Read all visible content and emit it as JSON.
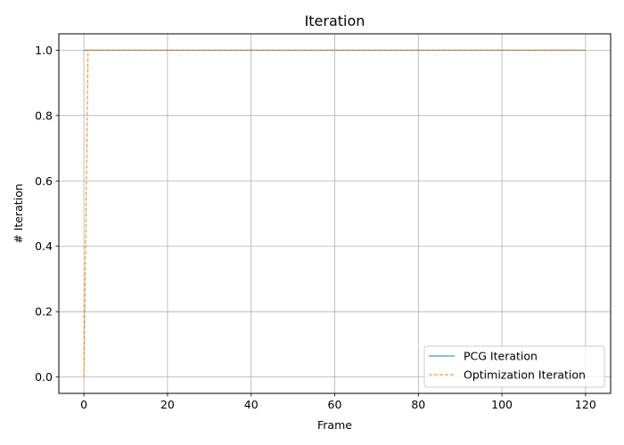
{
  "chart_data": {
    "type": "line",
    "title": "Iteration",
    "xlabel": "Frame",
    "ylabel": "# Iteration",
    "xlim": [
      -6,
      126
    ],
    "ylim": [
      -0.05,
      1.05
    ],
    "xticks": [
      0,
      20,
      40,
      60,
      80,
      100,
      120
    ],
    "yticks": [
      0.0,
      0.2,
      0.4,
      0.6,
      0.8,
      1.0
    ],
    "xtick_labels": [
      "0",
      "20",
      "40",
      "60",
      "80",
      "100",
      "120"
    ],
    "ytick_labels": [
      "0.0",
      "0.2",
      "0.4",
      "0.6",
      "0.8",
      "1.0"
    ],
    "grid": true,
    "legend_position": "lower-right",
    "series": [
      {
        "name": "PCG Iteration",
        "color": "#1f77b4",
        "style": "solid",
        "x": [
          0,
          1,
          120
        ],
        "y": [
          1,
          1,
          1
        ]
      },
      {
        "name": "Optimization Iteration",
        "color": "#ff7f0e",
        "style": "dashed",
        "x": [
          0,
          1,
          120
        ],
        "y": [
          0,
          1,
          1
        ]
      }
    ]
  }
}
